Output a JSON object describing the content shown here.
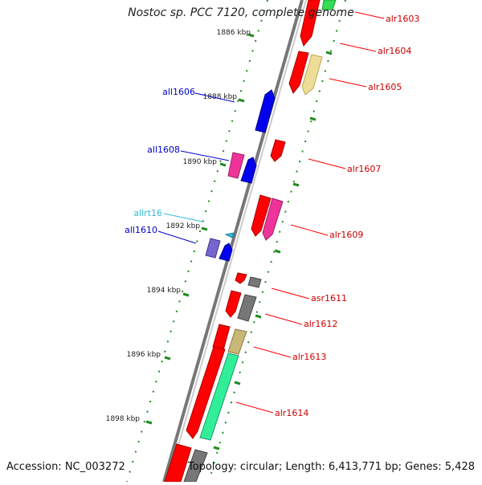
{
  "title": "Nostoc sp. PCC 7120, complete genome",
  "footer": {
    "accession": "Accession: NC_003272",
    "stats": "Topology: circular; Length: 6,413,771 bp; Genes: 5,428"
  },
  "scale_labels": [
    "1886 kbp",
    "1888 kbp",
    "1890 kbp",
    "1892 kbp",
    "1894 kbp",
    "1896 kbp",
    "1898 kbp"
  ],
  "left_genes": [
    {
      "label": "all1606",
      "color": "#0000cc"
    },
    {
      "label": "all1608",
      "color": "#0000cc"
    },
    {
      "label": "allrt16",
      "color": "#33bbdd"
    },
    {
      "label": "all1610",
      "color": "#0000cc"
    }
  ],
  "right_genes": [
    {
      "label": "alr1603",
      "color": "#cc0000"
    },
    {
      "label": "alr1604",
      "color": "#cc0000"
    },
    {
      "label": "alr1605",
      "color": "#cc0000"
    },
    {
      "label": "alr1607",
      "color": "#cc0000"
    },
    {
      "label": "alr1609",
      "color": "#cc0000"
    },
    {
      "label": "asr1611",
      "color": "#cc0000"
    },
    {
      "label": "alr1612",
      "color": "#cc0000"
    },
    {
      "label": "alr1613",
      "color": "#cc0000"
    },
    {
      "label": "alr1614",
      "color": "#cc0000"
    }
  ],
  "colors": {
    "backbone": "#888888",
    "forward_gene": "#ff0000",
    "reverse_gene": "#0000ee",
    "tick": "#228b22",
    "pseudo_gene": "#777777",
    "tan_gene": "#c8b878",
    "green_gene": "#33ee99",
    "pink_gene": "#ee3399",
    "purple_gene": "#7766cc",
    "trna": "#33bbdd"
  }
}
